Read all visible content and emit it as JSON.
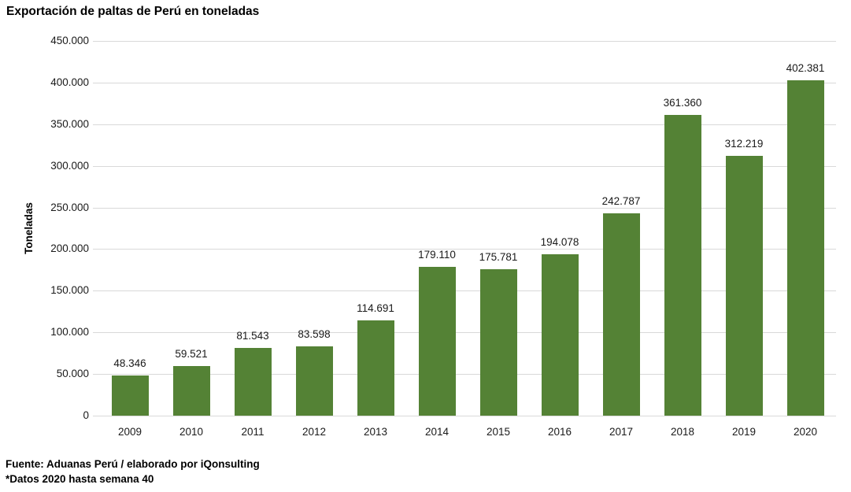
{
  "title": "Exportación de paltas de Perú en toneladas",
  "footer": {
    "source": "Fuente: Aduanas Perú / elaborado por iQonsulting",
    "note": "*Datos 2020 hasta semana 40"
  },
  "colors": {
    "bar": "#548235",
    "gridline": "#d9d9d9",
    "text": "#1a1a1a",
    "background": "#ffffff"
  },
  "chart_data": {
    "type": "bar",
    "title": "Exportación de paltas de Perú en toneladas",
    "categories": [
      "2009",
      "2010",
      "2011",
      "2012",
      "2013",
      "2014",
      "2015",
      "2016",
      "2017",
      "2018",
      "2019",
      "2020"
    ],
    "values": [
      48346,
      59521,
      81543,
      83598,
      114691,
      179110,
      175781,
      194078,
      242787,
      361360,
      312219,
      402381
    ],
    "value_labels": [
      "48.346",
      "59.521",
      "81.543",
      "83.598",
      "114.691",
      "179.110",
      "175.781",
      "194.078",
      "242.787",
      "361.360",
      "312.219",
      "402.381"
    ],
    "xlabel": "",
    "ylabel": "Toneladas",
    "ylim": [
      0,
      450000
    ],
    "ytick_step": 50000,
    "ytick_labels": [
      "0",
      "50.000",
      "100.000",
      "150.000",
      "200.000",
      "250.000",
      "300.000",
      "350.000",
      "400.000",
      "450.000"
    ],
    "grid": true,
    "legend": false,
    "bar_color": "#548235"
  }
}
